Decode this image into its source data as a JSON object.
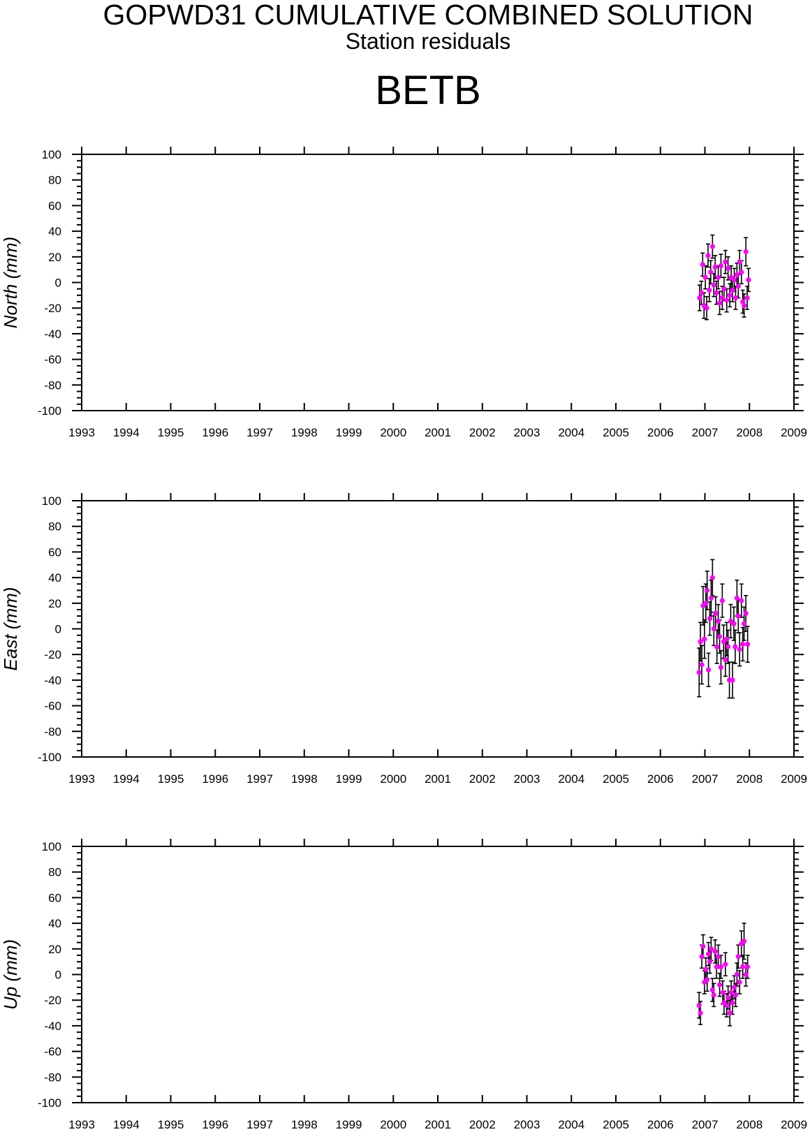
{
  "title": "GOPWD31 CUMULATIVE COMBINED SOLUTION",
  "subtitle": "Station residuals",
  "station": "BETB",
  "colors": {
    "marker": "#ff00ff",
    "errorbar": "#000000",
    "axis": "#000000"
  },
  "chart_data": [
    {
      "type": "scatter",
      "ylabel": "North (mm)",
      "xlim": [
        1993,
        2009
      ],
      "ylim": [
        -100,
        100
      ],
      "x_ticks": [
        "1993",
        "1994",
        "1995",
        "1996",
        "1997",
        "1998",
        "1999",
        "2000",
        "2001",
        "2002",
        "2003",
        "2004",
        "2005",
        "2006",
        "2007",
        "2008",
        "2009"
      ],
      "y_ticks": [
        "100",
        "80",
        "60",
        "40",
        "20",
        "0",
        "-20",
        "-40",
        "-60",
        "-80",
        "-100"
      ],
      "series": [
        {
          "marker": "circle",
          "points": [
            {
              "x": 2006.88,
              "y": -12,
              "err": 10
            },
            {
              "x": 2006.92,
              "y": -8,
              "err": 9
            },
            {
              "x": 2006.95,
              "y": 14,
              "err": 9
            },
            {
              "x": 2006.98,
              "y": -18,
              "err": 10
            },
            {
              "x": 2007.01,
              "y": 4,
              "err": 9
            },
            {
              "x": 2007.04,
              "y": -20,
              "err": 9
            },
            {
              "x": 2007.07,
              "y": 21,
              "err": 9
            },
            {
              "x": 2007.1,
              "y": -6,
              "err": 9
            },
            {
              "x": 2007.13,
              "y": 8,
              "err": 9
            },
            {
              "x": 2007.17,
              "y": 28,
              "err": 9
            },
            {
              "x": 2007.2,
              "y": -2,
              "err": 9
            },
            {
              "x": 2007.23,
              "y": 12,
              "err": 9
            },
            {
              "x": 2007.26,
              "y": -8,
              "err": 9
            },
            {
              "x": 2007.3,
              "y": 4,
              "err": 9
            },
            {
              "x": 2007.33,
              "y": -16,
              "err": 9
            },
            {
              "x": 2007.36,
              "y": 13,
              "err": 9
            },
            {
              "x": 2007.39,
              "y": -12,
              "err": 9
            },
            {
              "x": 2007.43,
              "y": -5,
              "err": 9
            },
            {
              "x": 2007.46,
              "y": 16,
              "err": 9
            },
            {
              "x": 2007.49,
              "y": -14,
              "err": 9
            },
            {
              "x": 2007.52,
              "y": 11,
              "err": 9
            },
            {
              "x": 2007.56,
              "y": -10,
              "err": 9
            },
            {
              "x": 2007.59,
              "y": 4,
              "err": 9
            },
            {
              "x": 2007.62,
              "y": -6,
              "err": 9
            },
            {
              "x": 2007.66,
              "y": 2,
              "err": 9
            },
            {
              "x": 2007.69,
              "y": -12,
              "err": 9
            },
            {
              "x": 2007.72,
              "y": 6,
              "err": 9
            },
            {
              "x": 2007.75,
              "y": -3,
              "err": 9
            },
            {
              "x": 2007.78,
              "y": 16,
              "err": 9
            },
            {
              "x": 2007.82,
              "y": 8,
              "err": 9
            },
            {
              "x": 2007.85,
              "y": -15,
              "err": 9
            },
            {
              "x": 2007.88,
              "y": -18,
              "err": 9
            },
            {
              "x": 2007.92,
              "y": 24,
              "err": 11
            },
            {
              "x": 2007.95,
              "y": -12,
              "err": 9
            },
            {
              "x": 2007.98,
              "y": 2,
              "err": 9
            }
          ]
        }
      ]
    },
    {
      "type": "scatter",
      "ylabel": "East (mm)",
      "xlim": [
        1993,
        2009
      ],
      "ylim": [
        -100,
        100
      ],
      "x_ticks": [
        "1993",
        "1994",
        "1995",
        "1996",
        "1997",
        "1998",
        "1999",
        "2000",
        "2001",
        "2002",
        "2003",
        "2004",
        "2005",
        "2006",
        "2007",
        "2008",
        "2009"
      ],
      "y_ticks": [
        "100",
        "80",
        "60",
        "40",
        "20",
        "0",
        "-20",
        "-40",
        "-60",
        "-80",
        "-100"
      ],
      "series": [
        {
          "marker": "circle",
          "points": [
            {
              "x": 2006.87,
              "y": -34,
              "err": 19
            },
            {
              "x": 2006.9,
              "y": -10,
              "err": 15
            },
            {
              "x": 2006.93,
              "y": -28,
              "err": 15
            },
            {
              "x": 2006.96,
              "y": 18,
              "err": 15
            },
            {
              "x": 2006.99,
              "y": -8,
              "err": 15
            },
            {
              "x": 2007.02,
              "y": 20,
              "err": 15
            },
            {
              "x": 2007.05,
              "y": 30,
              "err": 15
            },
            {
              "x": 2007.08,
              "y": -32,
              "err": 13
            },
            {
              "x": 2007.11,
              "y": 8,
              "err": 13
            },
            {
              "x": 2007.14,
              "y": 24,
              "err": 14
            },
            {
              "x": 2007.17,
              "y": 40,
              "err": 14
            },
            {
              "x": 2007.2,
              "y": 0,
              "err": 13
            },
            {
              "x": 2007.24,
              "y": 12,
              "err": 13
            },
            {
              "x": 2007.27,
              "y": -14,
              "err": 13
            },
            {
              "x": 2007.3,
              "y": 6,
              "err": 13
            },
            {
              "x": 2007.33,
              "y": -6,
              "err": 13
            },
            {
              "x": 2007.36,
              "y": -30,
              "err": 13
            },
            {
              "x": 2007.39,
              "y": 22,
              "err": 13
            },
            {
              "x": 2007.42,
              "y": -10,
              "err": 13
            },
            {
              "x": 2007.46,
              "y": -24,
              "err": 13
            },
            {
              "x": 2007.49,
              "y": -8,
              "err": 13
            },
            {
              "x": 2007.52,
              "y": -14,
              "err": 13
            },
            {
              "x": 2007.55,
              "y": -40,
              "err": 14
            },
            {
              "x": 2007.58,
              "y": 6,
              "err": 13
            },
            {
              "x": 2007.62,
              "y": -40,
              "err": 14
            },
            {
              "x": 2007.65,
              "y": 4,
              "err": 13
            },
            {
              "x": 2007.68,
              "y": -14,
              "err": 13
            },
            {
              "x": 2007.72,
              "y": 24,
              "err": 14
            },
            {
              "x": 2007.75,
              "y": 10,
              "err": 13
            },
            {
              "x": 2007.78,
              "y": -16,
              "err": 13
            },
            {
              "x": 2007.82,
              "y": 22,
              "err": 13
            },
            {
              "x": 2007.85,
              "y": -12,
              "err": 13
            },
            {
              "x": 2007.88,
              "y": 4,
              "err": 13
            },
            {
              "x": 2007.92,
              "y": 12,
              "err": 14
            },
            {
              "x": 2007.96,
              "y": -12,
              "err": 14
            }
          ]
        }
      ]
    },
    {
      "type": "scatter",
      "ylabel": "Up (mm)",
      "xlim": [
        1993,
        2009
      ],
      "ylim": [
        -100,
        100
      ],
      "x_ticks": [
        "1993",
        "1994",
        "1995",
        "1996",
        "1997",
        "1998",
        "1999",
        "2000",
        "2001",
        "2002",
        "2003",
        "2004",
        "2005",
        "2006",
        "2007",
        "2008",
        "2009"
      ],
      "y_ticks": [
        "100",
        "80",
        "60",
        "40",
        "20",
        "0",
        "-20",
        "-40",
        "-60",
        "-80",
        "-100"
      ],
      "series": [
        {
          "marker": "circle",
          "points": [
            {
              "x": 2006.87,
              "y": -24,
              "err": 10
            },
            {
              "x": 2006.9,
              "y": -30,
              "err": 9
            },
            {
              "x": 2006.93,
              "y": 14,
              "err": 9
            },
            {
              "x": 2006.96,
              "y": 22,
              "err": 9
            },
            {
              "x": 2006.99,
              "y": -6,
              "err": 9
            },
            {
              "x": 2007.02,
              "y": 4,
              "err": 9
            },
            {
              "x": 2007.05,
              "y": -4,
              "err": 9
            },
            {
              "x": 2007.08,
              "y": 16,
              "err": 9
            },
            {
              "x": 2007.11,
              "y": 10,
              "err": 9
            },
            {
              "x": 2007.14,
              "y": 20,
              "err": 9
            },
            {
              "x": 2007.17,
              "y": -12,
              "err": 9
            },
            {
              "x": 2007.2,
              "y": -16,
              "err": 9
            },
            {
              "x": 2007.23,
              "y": 18,
              "err": 9
            },
            {
              "x": 2007.26,
              "y": 6,
              "err": 9
            },
            {
              "x": 2007.3,
              "y": 14,
              "err": 9
            },
            {
              "x": 2007.33,
              "y": -8,
              "err": 9
            },
            {
              "x": 2007.36,
              "y": 6,
              "err": 9
            },
            {
              "x": 2007.4,
              "y": -14,
              "err": 9
            },
            {
              "x": 2007.43,
              "y": -22,
              "err": 9
            },
            {
              "x": 2007.46,
              "y": 8,
              "err": 9
            },
            {
              "x": 2007.49,
              "y": -24,
              "err": 9
            },
            {
              "x": 2007.52,
              "y": -18,
              "err": 9
            },
            {
              "x": 2007.56,
              "y": -30,
              "err": 10
            },
            {
              "x": 2007.59,
              "y": -14,
              "err": 9
            },
            {
              "x": 2007.62,
              "y": -22,
              "err": 9
            },
            {
              "x": 2007.66,
              "y": -10,
              "err": 9
            },
            {
              "x": 2007.69,
              "y": -16,
              "err": 9
            },
            {
              "x": 2007.72,
              "y": 0,
              "err": 9
            },
            {
              "x": 2007.75,
              "y": 14,
              "err": 9
            },
            {
              "x": 2007.78,
              "y": -6,
              "err": 9
            },
            {
              "x": 2007.82,
              "y": 24,
              "err": 10
            },
            {
              "x": 2007.85,
              "y": 6,
              "err": 9
            },
            {
              "x": 2007.88,
              "y": 26,
              "err": 14
            },
            {
              "x": 2007.92,
              "y": 0,
              "err": 9
            },
            {
              "x": 2007.96,
              "y": 6,
              "err": 9
            }
          ]
        }
      ]
    }
  ]
}
